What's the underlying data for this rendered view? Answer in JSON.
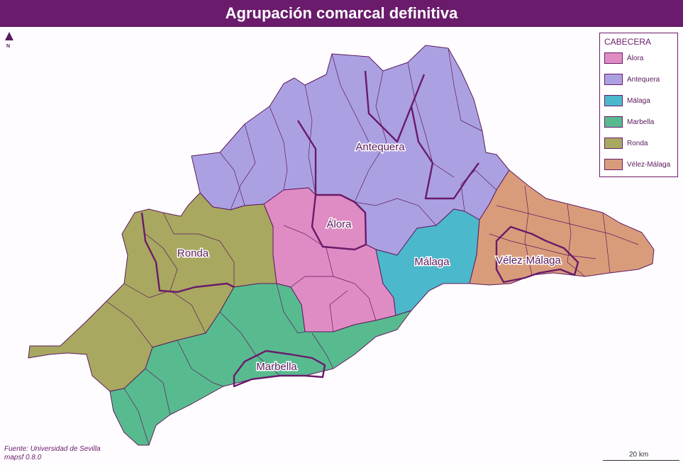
{
  "title": "Agrupación comarcal definitiva",
  "north_label": "N",
  "legend": {
    "title": "CABECERA",
    "items": [
      {
        "label": "Álora",
        "color": "#e08cc4"
      },
      {
        "label": "Antequera",
        "color": "#aba1e2"
      },
      {
        "label": "Málaga",
        "color": "#4cb8cc"
      },
      {
        "label": "Marbella",
        "color": "#58bb90"
      },
      {
        "label": "Ronda",
        "color": "#a8a860"
      },
      {
        "label": "Vélez-Málaga",
        "color": "#d99c7b"
      }
    ]
  },
  "regions": {
    "antequera": "Antequera",
    "alora": "Álora",
    "ronda": "Ronda",
    "malaga": "Málaga",
    "velez": "Vélez-Málaga",
    "marbella": "Marbella"
  },
  "source_lines": [
    "Fuente: Universidad de Sevilla",
    "mapsf 0.8.0"
  ],
  "scale_label": "20 km",
  "colors": {
    "title_bar": "#6a1b6b",
    "border": "#5e1a5e"
  }
}
